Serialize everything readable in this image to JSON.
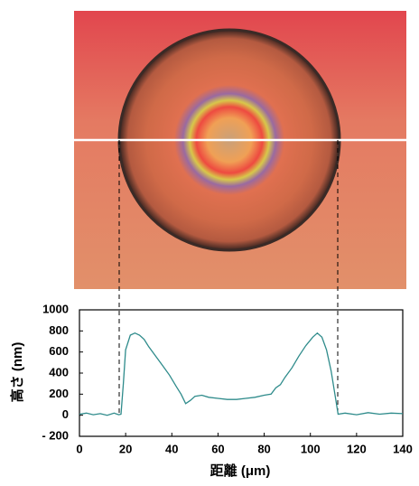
{
  "chart_data": {
    "type": "line",
    "x_label": "距離 (μm)",
    "y_label": "高さ (nm)",
    "x": [
      0,
      3,
      6,
      9,
      12,
      15,
      17,
      18,
      19,
      20,
      22,
      24,
      26,
      28,
      30,
      33,
      36,
      39,
      42,
      44,
      46,
      48,
      50,
      53,
      56,
      60,
      64,
      68,
      72,
      76,
      80,
      83,
      85,
      87,
      89,
      92,
      95,
      98,
      101,
      103,
      105,
      107,
      109,
      111,
      112,
      115,
      120,
      125,
      130,
      135,
      140
    ],
    "values": [
      10,
      20,
      5,
      15,
      0,
      20,
      5,
      10,
      300,
      620,
      760,
      780,
      760,
      720,
      650,
      560,
      470,
      380,
      270,
      200,
      110,
      140,
      180,
      190,
      170,
      160,
      150,
      150,
      160,
      170,
      190,
      200,
      260,
      290,
      360,
      450,
      560,
      660,
      740,
      780,
      740,
      620,
      420,
      150,
      10,
      20,
      5,
      25,
      10,
      20,
      15
    ],
    "color": "#2e8b8b",
    "xlim": [
      0,
      140
    ],
    "xticks": [
      0,
      20,
      40,
      60,
      80,
      100,
      120,
      140
    ],
    "ylim": [
      -200,
      1000
    ],
    "yticks": [
      {
        "value": -200,
        "label": "- 200"
      },
      0,
      200,
      400,
      600,
      800,
      1000
    ]
  }
}
